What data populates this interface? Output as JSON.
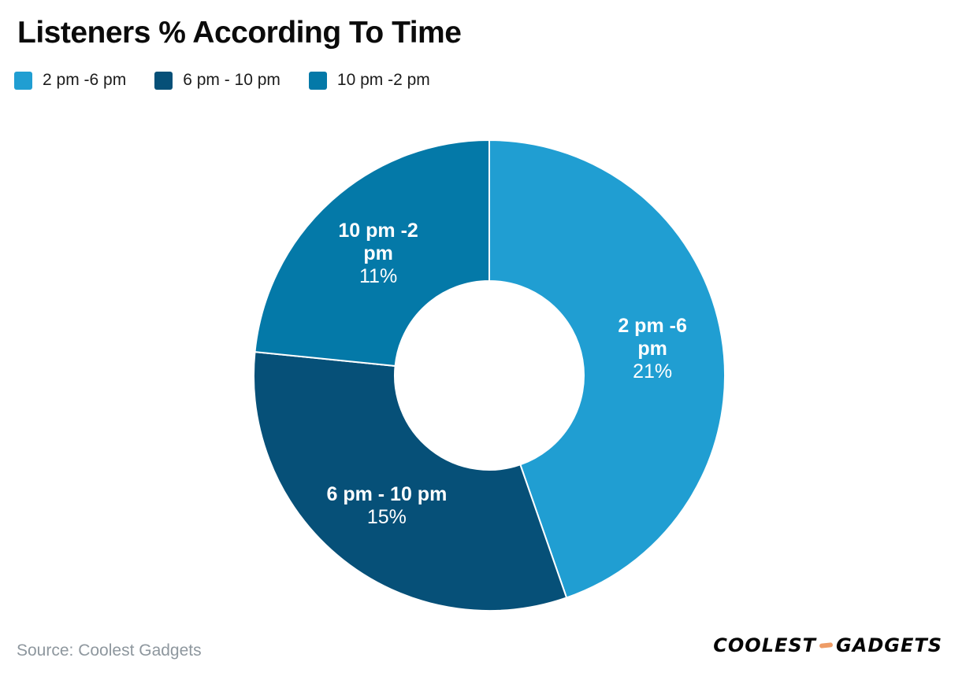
{
  "header": {
    "title": "Listeners % According To Time"
  },
  "chart_data": {
    "type": "pie",
    "subtype": "donut",
    "title": "Listeners % According To Time",
    "categories": [
      "2 pm -6 pm",
      "6 pm - 10 pm",
      "10 pm -2 pm"
    ],
    "values": [
      21,
      15,
      11
    ],
    "slices": [
      {
        "label": "2 pm -6 pm",
        "value": 21,
        "percent_label": "21%",
        "label_lines": [
          "2 pm -6",
          "pm"
        ],
        "color": "#209ed2"
      },
      {
        "label": "6 pm - 10 pm",
        "value": 15,
        "percent_label": "15%",
        "label_lines": [
          "6 pm - 10 pm"
        ],
        "color": "#065078"
      },
      {
        "label": "10 pm -2 pm",
        "value": 11,
        "percent_label": "11%",
        "label_lines": [
          "10 pm -2",
          "pm"
        ],
        "color": "#0479a8"
      }
    ],
    "start_angle_deg": 0,
    "direction": "clockwise",
    "donut_hole_ratio": 0.4,
    "legend_position": "top-left",
    "label_text_color": "#ffffff",
    "slice_separator_color": "#ffffff"
  },
  "footer": {
    "source": "Source: Coolest Gadgets",
    "logo": {
      "word1": "COOLEST",
      "word2": "GADGETS",
      "dash_color": "#ee9c66"
    }
  }
}
